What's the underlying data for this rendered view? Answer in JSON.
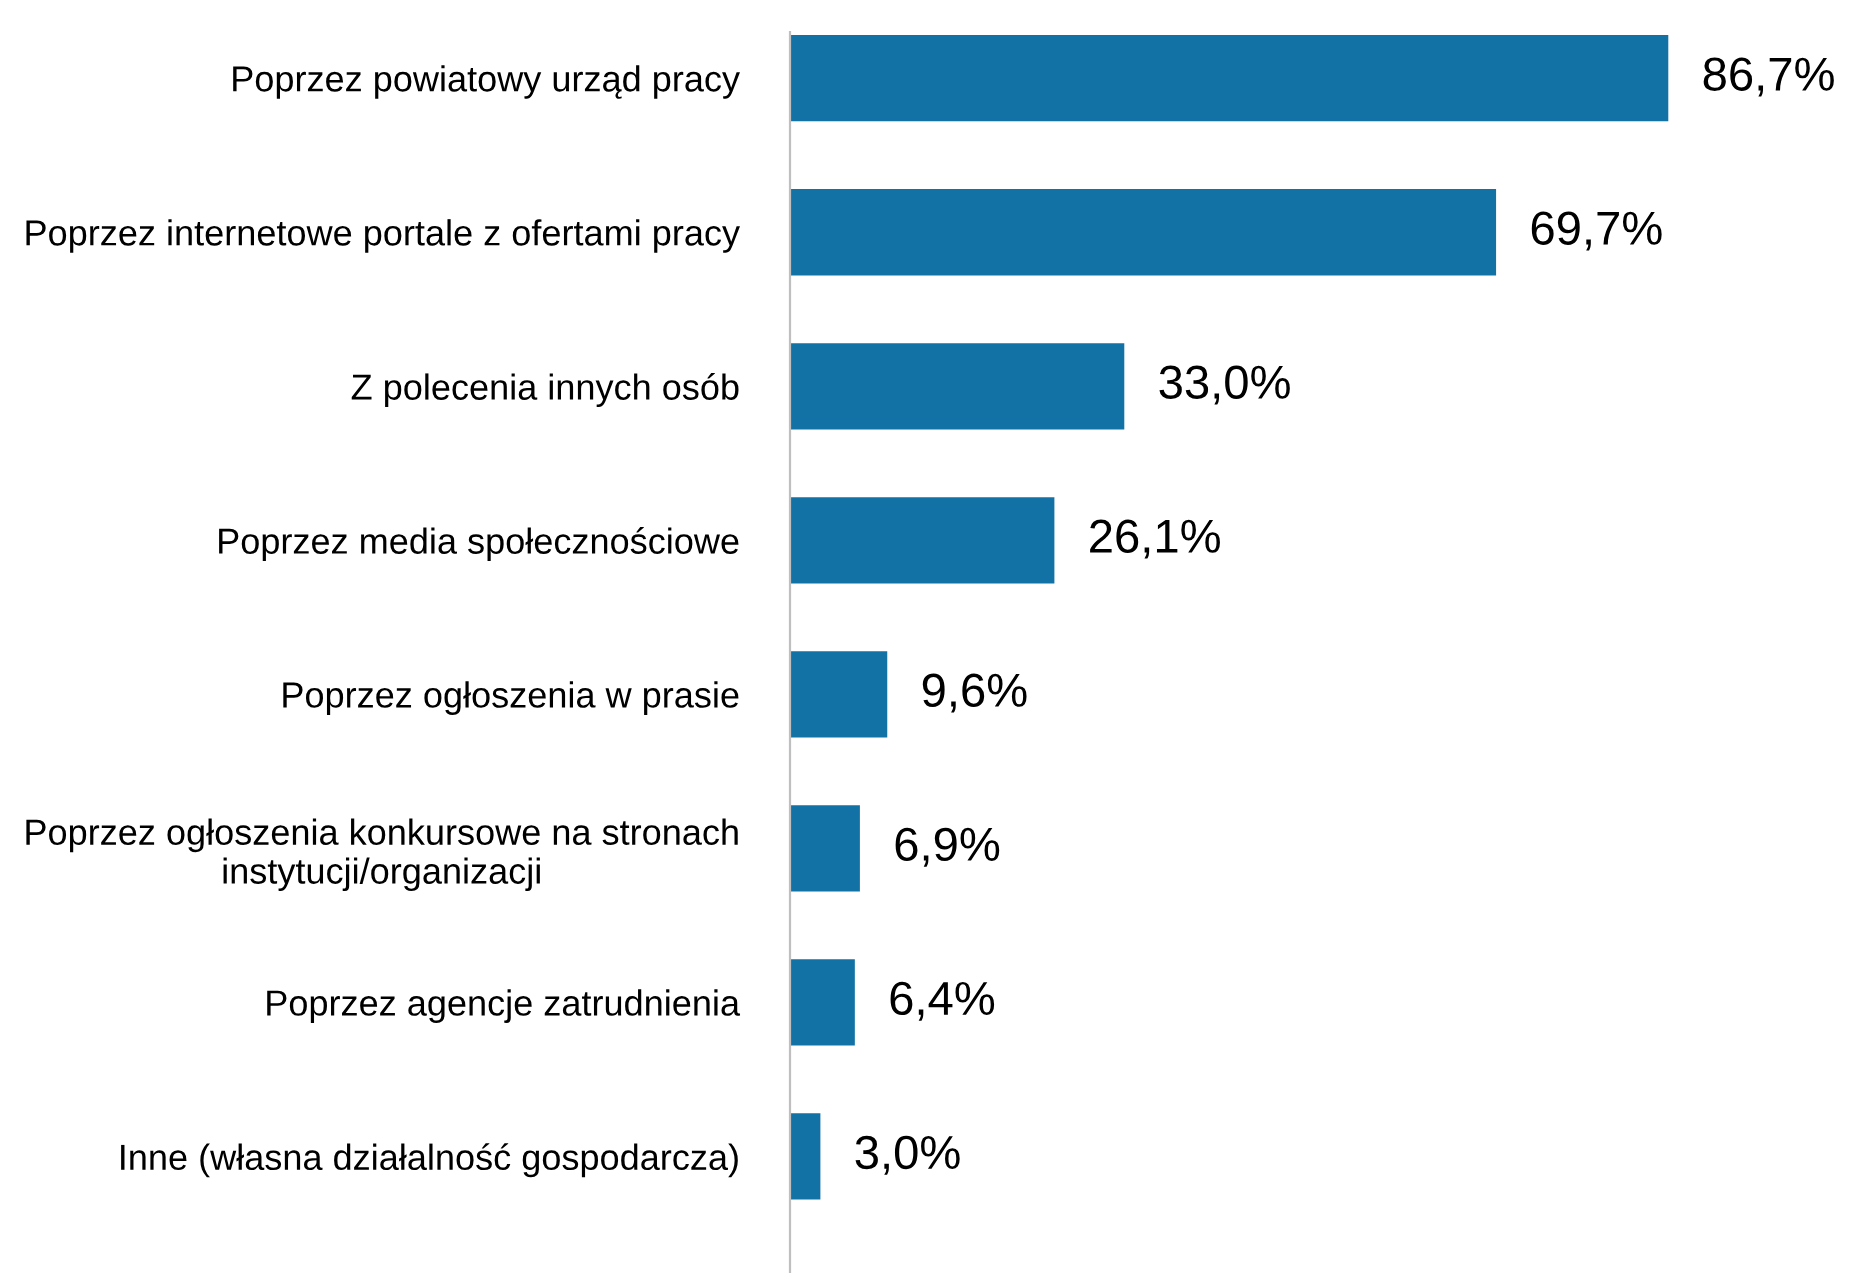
{
  "chart_data": {
    "type": "bar",
    "orientation": "horizontal",
    "categories": [
      "Poprzez powiatowy urząd pracy",
      "Poprzez internetowe portale z ofertami pracy",
      "Z polecenia innych osób",
      "Poprzez media społecznościowe",
      "Poprzez ogłoszenia w prasie",
      "Poprzez ogłoszenia konkursowe na stronach instytucji/organizacji",
      "Poprzez agencje zatrudnienia",
      "Inne (własna działalność gospodarcza)"
    ],
    "values": [
      86.7,
      69.7,
      33.0,
      26.1,
      9.6,
      6.9,
      6.4,
      3.0
    ],
    "value_labels": [
      "86,7%",
      "69,7%",
      "33,0%",
      "26,1%",
      "9,6%",
      "6,9%",
      "6,4%",
      "3,0%"
    ],
    "color": "#1272a6",
    "grid": false,
    "legend": false
  }
}
